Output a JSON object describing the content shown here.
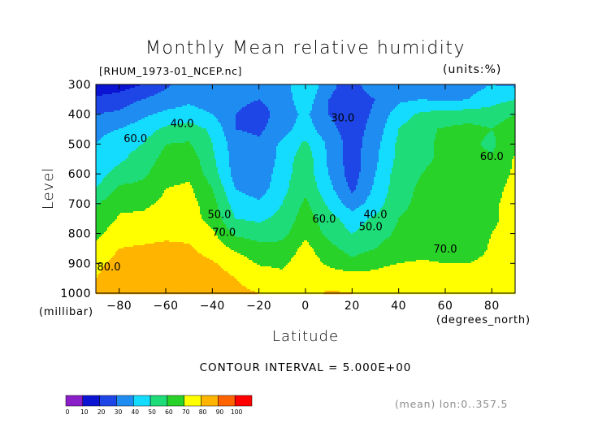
{
  "chart_data": {
    "type": "heatmap",
    "title": "Monthly Mean relative humidity",
    "file_label": "[RHUM_1973-01_NCEP.nc]",
    "units_label": "(units:%)",
    "xlabel": "Latitude",
    "x_units_label": "(degrees_north)",
    "ylabel": "Level",
    "y_units_label": "(millibar)",
    "xlim": [
      -90,
      90
    ],
    "ylim": [
      1000,
      300
    ],
    "x_ticks": [
      -80,
      -60,
      -40,
      -20,
      0,
      20,
      40,
      60,
      80
    ],
    "x_tick_labels": [
      "−80",
      "−60",
      "−40",
      "−20",
      "0",
      "20",
      "40",
      "60",
      "80"
    ],
    "y_ticks": [
      300,
      400,
      500,
      600,
      700,
      800,
      900,
      1000
    ],
    "y_tick_labels": [
      "300",
      "400",
      "500",
      "600",
      "700",
      "800",
      "900",
      "1000"
    ],
    "contour_interval_text": "CONTOUR INTERVAL = 5.000E+00",
    "mean_note": "(mean) lon:0..357.5",
    "colorbar": {
      "levels": [
        0,
        10,
        20,
        30,
        40,
        50,
        60,
        70,
        80,
        90,
        100
      ],
      "level_labels": [
        "0",
        "10",
        "20",
        "30",
        "40",
        "50",
        "60",
        "70",
        "80",
        "90",
        "100"
      ],
      "colors": [
        "#8a1ec8",
        "#0a14d2",
        "#1e46e6",
        "#1e8cf0",
        "#14dcff",
        "#1edc78",
        "#28d228",
        "#ffff00",
        "#ffb400",
        "#ff6400",
        "#ff0000"
      ]
    },
    "contour_labels": [
      {
        "text": "30.0",
        "lat": 16,
        "lev": 410
      },
      {
        "text": "40.0",
        "lat": -53,
        "lev": 430
      },
      {
        "text": "40.0",
        "lat": 30,
        "lev": 735
      },
      {
        "text": "50.0",
        "lat": -37,
        "lev": 735
      },
      {
        "text": "50.0",
        "lat": 28,
        "lev": 775
      },
      {
        "text": "60.0",
        "lat": -73,
        "lev": 480
      },
      {
        "text": "60.0",
        "lat": 8,
        "lev": 750
      },
      {
        "text": "60.0",
        "lat": 80,
        "lev": 540
      },
      {
        "text": "70.0",
        "lat": -35,
        "lev": 795
      },
      {
        "text": "70.0",
        "lat": 60,
        "lev": 850
      },
      {
        "text": "80.0",
        "lat": -90,
        "lev": 910
      }
    ],
    "grid_lat": [
      -90,
      -80,
      -70,
      -60,
      -50,
      -40,
      -30,
      -20,
      -10,
      0,
      10,
      20,
      30,
      40,
      50,
      60,
      70,
      80,
      90
    ],
    "grid_lev": [
      300,
      350,
      400,
      450,
      500,
      550,
      600,
      650,
      700,
      750,
      800,
      850,
      900,
      950,
      1000
    ],
    "values": [
      [
        12,
        15,
        20,
        28,
        35,
        38,
        39,
        36,
        34,
        50,
        33,
        25,
        38,
        40,
        40,
        38,
        36,
        40,
        38
      ],
      [
        22,
        25,
        30,
        35,
        38,
        35,
        33,
        30,
        35,
        46,
        30,
        24,
        30,
        38,
        40,
        38,
        40,
        46,
        50
      ],
      [
        30,
        32,
        38,
        42,
        44,
        40,
        30,
        25,
        35,
        42,
        30,
        24,
        32,
        45,
        52,
        54,
        55,
        55,
        60
      ],
      [
        38,
        40,
        45,
        52,
        55,
        48,
        30,
        28,
        36,
        45,
        33,
        25,
        34,
        50,
        58,
        61,
        63,
        60,
        66
      ],
      [
        40,
        45,
        50,
        60,
        61,
        50,
        35,
        32,
        42,
        52,
        38,
        25,
        37,
        52,
        58,
        62,
        62,
        58,
        68
      ],
      [
        43,
        48,
        55,
        63,
        66,
        52,
        35,
        30,
        44,
        56,
        38,
        25,
        38,
        53,
        58,
        62,
        64,
        61,
        71
      ],
      [
        45,
        54,
        58,
        66,
        68,
        55,
        36,
        32,
        46,
        56,
        40,
        25,
        40,
        55,
        60,
        64,
        66,
        63,
        72
      ],
      [
        50,
        62,
        63,
        70,
        72,
        60,
        40,
        35,
        47,
        58,
        43,
        28,
        42,
        56,
        62,
        65,
        66,
        66,
        74
      ],
      [
        59,
        68,
        68,
        72,
        74,
        64,
        45,
        42,
        50,
        62,
        48,
        35,
        45,
        58,
        62,
        66,
        66,
        68,
        74
      ],
      [
        63,
        71,
        72,
        75,
        75,
        66,
        50,
        48,
        53,
        65,
        54,
        45,
        52,
        60,
        63,
        66,
        66,
        68,
        74
      ],
      [
        67,
        76,
        77,
        78,
        78,
        72,
        58,
        56,
        57,
        68,
        57,
        50,
        55,
        62,
        64,
        66,
        66,
        70,
        75
      ],
      [
        73,
        80,
        81,
        82,
        81,
        76,
        68,
        63,
        63,
        73,
        63,
        56,
        60,
        66,
        67,
        66,
        66,
        71,
        76
      ],
      [
        78,
        83,
        84,
        85,
        84,
        81,
        76,
        69,
        68,
        76,
        68,
        63,
        67,
        70,
        71,
        70,
        70,
        72,
        76
      ],
      [
        80,
        84,
        86,
        89,
        88,
        84,
        80,
        76,
        73,
        78,
        76,
        75,
        74,
        78,
        76,
        73,
        73,
        72,
        78
      ],
      [
        82,
        86,
        88,
        90,
        89,
        85,
        82,
        80,
        75,
        77,
        81,
        80,
        78,
        80,
        78,
        74,
        72,
        72,
        78
      ]
    ]
  }
}
